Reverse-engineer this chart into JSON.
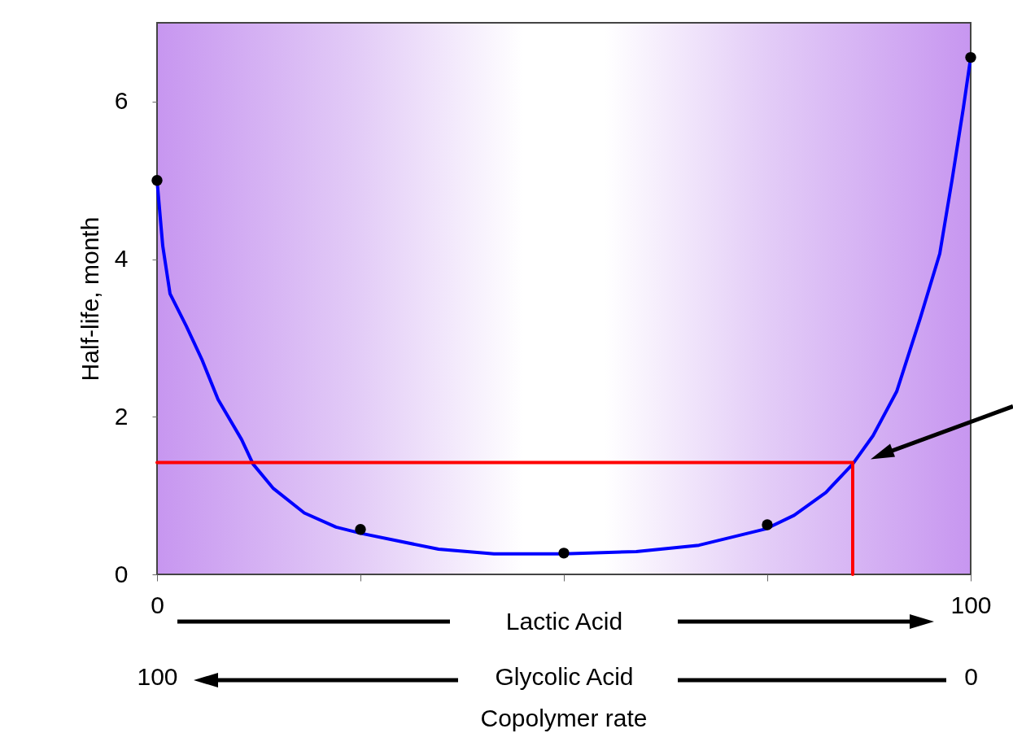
{
  "chart_data": {
    "type": "line",
    "xlabel": "Lactic Acid",
    "x2label": "Glycolic Acid",
    "ylabel": "Half-life, month",
    "annotations": [
      "Copolymer rate"
    ],
    "xlim": [
      0,
      100
    ],
    "xticks": [
      {
        "value": 0,
        "label": "0"
      },
      {
        "value": 25,
        "label": null
      },
      {
        "value": 50,
        "label": null
      },
      {
        "value": 75,
        "label": null
      },
      {
        "value": 100,
        "label": "100"
      }
    ],
    "x2lim": [
      100,
      0
    ],
    "x2ticks": [
      {
        "value": 100,
        "label": "100"
      },
      {
        "value": 0,
        "label": "0"
      }
    ],
    "ylim": [
      0,
      7
    ],
    "yticks": [
      0,
      2,
      4,
      6
    ],
    "grid": false,
    "series": [
      {
        "type": "line",
        "color": "#0000ff",
        "x": [
          0,
          0.7,
          1.6,
          3.6,
          5.5,
          7.5,
          10.4,
          11.8,
          14.3,
          18.1,
          22,
          25.1,
          29.8,
          34.6,
          41.4,
          50,
          58.9,
          66.6,
          74.9,
          78.3,
          82.2,
          85.5,
          88,
          90.9,
          93.8,
          96.2,
          97.7,
          99.1,
          100
        ],
        "values": [
          5.0,
          4.17,
          3.56,
          3.15,
          2.73,
          2.22,
          1.71,
          1.4,
          1.09,
          0.78,
          0.6,
          0.52,
          0.42,
          0.32,
          0.26,
          0.26,
          0.29,
          0.37,
          0.58,
          0.75,
          1.04,
          1.4,
          1.76,
          2.32,
          3.25,
          4.07,
          5.0,
          5.92,
          6.56
        ]
      },
      {
        "type": "scatter",
        "color": "#000000",
        "marker": "circle",
        "x": [
          0,
          25,
          50,
          75,
          100
        ],
        "values": [
          5.0,
          0.57,
          0.27,
          0.63,
          6.56
        ]
      },
      {
        "type": "line",
        "color": "#ff0000",
        "x": [
          0,
          85.5,
          85.5
        ],
        "values": [
          1.42,
          1.42,
          0
        ]
      }
    ]
  }
}
